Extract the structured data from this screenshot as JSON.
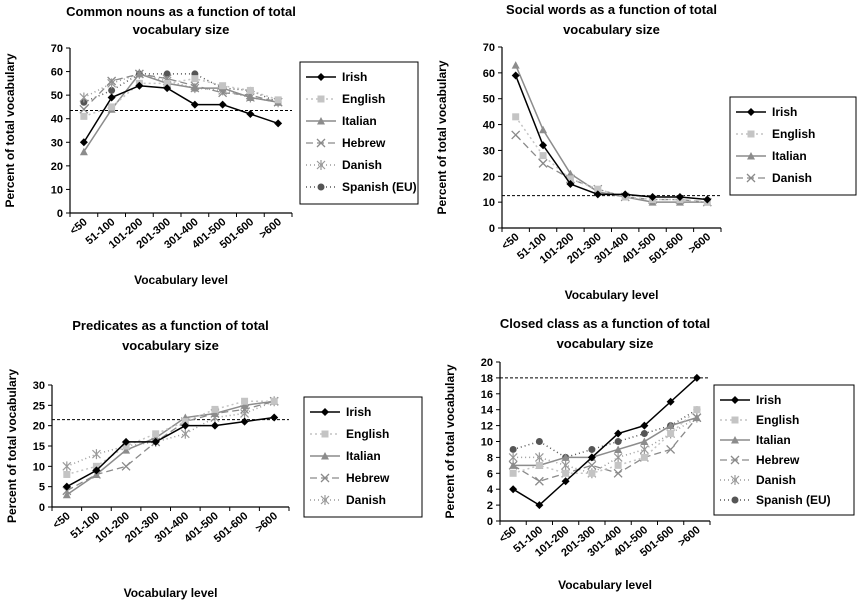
{
  "chart_data": [
    {
      "type": "line",
      "title": [
        "Common nouns as a function of total",
        "vocabulary size"
      ],
      "xlabel": "Vocabulary level",
      "ylabel": "Percent of total vocabulary",
      "categories": [
        "<50",
        "51-100",
        "101-200",
        "201-300",
        "301-400",
        "401-500",
        "501-600",
        ">600"
      ],
      "ylim": [
        0,
        70
      ],
      "yticks": [
        0,
        10,
        20,
        30,
        40,
        50,
        60,
        70
      ],
      "reference_line": 43.5,
      "grid": false,
      "legend_position": "right",
      "series": [
        {
          "name": "Irish",
          "style": "irish",
          "values": [
            30,
            49,
            54,
            53,
            46,
            46,
            42,
            38
          ]
        },
        {
          "name": "English",
          "style": "english",
          "values": [
            41,
            45,
            55,
            55,
            57,
            54,
            52,
            48
          ]
        },
        {
          "name": "Italian",
          "style": "italian",
          "values": [
            26,
            44,
            59,
            55,
            53,
            53,
            49,
            47
          ]
        },
        {
          "name": "Hebrew",
          "style": "hebrew",
          "values": [
            44,
            56,
            59,
            57,
            54,
            51,
            50,
            47
          ]
        },
        {
          "name": "Danish",
          "style": "danish",
          "values": [
            49,
            55,
            59,
            56,
            53,
            52,
            49,
            47
          ]
        },
        {
          "name": "Spanish (EU)",
          "style": "spanish",
          "values": [
            47,
            52,
            59,
            59,
            59,
            53,
            52,
            47
          ]
        }
      ]
    },
    {
      "type": "line",
      "title": [
        "Social words as a function of total",
        "vocabulary size"
      ],
      "xlabel": "Vocabulary level",
      "ylabel": "Percent of total vocabulary",
      "categories": [
        "<50",
        "51-100",
        "101-200",
        "201-300",
        "301-400",
        "401-500",
        "501-600",
        ">600"
      ],
      "ylim": [
        0,
        70
      ],
      "yticks": [
        0,
        10,
        20,
        30,
        40,
        50,
        60,
        70
      ],
      "reference_line": 12.5,
      "grid": false,
      "legend_position": "right",
      "series": [
        {
          "name": "Irish",
          "style": "irish",
          "values": [
            59,
            32,
            17,
            13,
            13,
            12,
            12,
            11
          ]
        },
        {
          "name": "English",
          "style": "english",
          "values": [
            43,
            28,
            19,
            15,
            12,
            11,
            11,
            10
          ]
        },
        {
          "name": "Italian",
          "style": "italian",
          "values": [
            63,
            38,
            21,
            14,
            12,
            10,
            10,
            10
          ]
        },
        {
          "name": "Danish",
          "style": "hebrew",
          "values": [
            36,
            25,
            19,
            15,
            12,
            11,
            11,
            10
          ]
        }
      ]
    },
    {
      "type": "line",
      "title": [
        "Predicates as a function of total",
        "vocabulary size"
      ],
      "xlabel": "Vocabulary level",
      "ylabel": "Percent of total vocabulary",
      "categories": [
        "<50",
        "51-100",
        "101-200",
        "201-300",
        "301-400",
        "401-500",
        "501-600",
        ">600"
      ],
      "ylim": [
        0,
        30
      ],
      "yticks": [
        0,
        5,
        10,
        15,
        20,
        25,
        30
      ],
      "reference_line": 21.5,
      "grid": false,
      "legend_position": "right",
      "series": [
        {
          "name": "Irish",
          "style": "irish",
          "values": [
            5,
            9,
            16,
            16,
            20,
            20,
            21,
            22
          ]
        },
        {
          "name": "English",
          "style": "english",
          "values": [
            8,
            10,
            15,
            18,
            21,
            24,
            26,
            26
          ]
        },
        {
          "name": "Italian",
          "style": "italian",
          "values": [
            3,
            8,
            14,
            17,
            22,
            23,
            25,
            26
          ]
        },
        {
          "name": "Hebrew",
          "style": "hebrew",
          "values": [
            4,
            8,
            10,
            16,
            21,
            23,
            24,
            26
          ]
        },
        {
          "name": "Danish",
          "style": "danish",
          "values": [
            10,
            13,
            15,
            16,
            18,
            22,
            23,
            26
          ]
        }
      ]
    },
    {
      "type": "line",
      "title": [
        "Closed class as a function of total",
        "vocabulary size"
      ],
      "xlabel": "Vocabulary level",
      "ylabel": "Percent of total vocabulary",
      "categories": [
        "<50",
        "51-100",
        "101-200",
        "201-300",
        "301-400",
        "401-500",
        "501-600",
        ">600"
      ],
      "ylim": [
        0,
        20
      ],
      "yticks": [
        0,
        2,
        4,
        6,
        8,
        10,
        12,
        14,
        16,
        18,
        20
      ],
      "reference_line": 18,
      "grid": false,
      "legend_position": "right",
      "series": [
        {
          "name": "Irish",
          "style": "irish",
          "values": [
            4,
            2,
            5,
            8,
            11,
            12,
            15,
            18
          ]
        },
        {
          "name": "English",
          "style": "english",
          "values": [
            6,
            7,
            6,
            6,
            7,
            8,
            11,
            14
          ]
        },
        {
          "name": "Italian",
          "style": "italian",
          "values": [
            7,
            7,
            8,
            8,
            9,
            10,
            12,
            13
          ]
        },
        {
          "name": "Hebrew",
          "style": "hebrew",
          "values": [
            7,
            5,
            6,
            7,
            6,
            8,
            9,
            13
          ]
        },
        {
          "name": "Danish",
          "style": "danish",
          "values": [
            8,
            8,
            7,
            6,
            8,
            9,
            11,
            13
          ]
        },
        {
          "name": "Spanish (EU)",
          "style": "spanish",
          "values": [
            9,
            10,
            8,
            9,
            10,
            11,
            12,
            14
          ]
        }
      ]
    }
  ],
  "colors": {
    "irish": "#000000",
    "english": "#c4c4c4",
    "italian": "#8c8c8c",
    "hebrew": "#8a8a8a",
    "danish": "#9a9a9a",
    "spanish": "#555555",
    "reference": "#000000"
  }
}
